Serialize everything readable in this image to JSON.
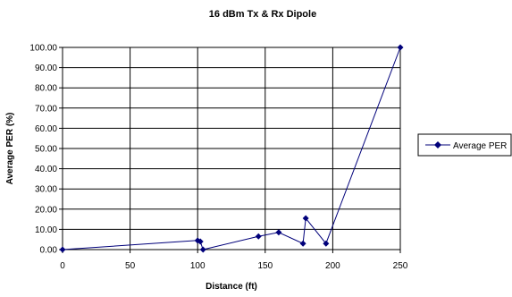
{
  "chart_data": {
    "type": "line",
    "title": "16 dBm Tx & Rx Dipole",
    "xlabel": "Distance (ft)",
    "ylabel": "Average PER (%)",
    "xlim": [
      0,
      250
    ],
    "ylim": [
      0,
      100
    ],
    "x_ticks": [
      0,
      50,
      100,
      150,
      200,
      250
    ],
    "x_tick_labels": [
      "0",
      "50",
      "100",
      "150",
      "200",
      "250"
    ],
    "y_ticks": [
      0,
      10,
      20,
      30,
      40,
      50,
      60,
      70,
      80,
      90,
      100
    ],
    "y_tick_labels": [
      "0.00",
      "10.00",
      "20.00",
      "30.00",
      "40.00",
      "50.00",
      "60.00",
      "70.00",
      "80.00",
      "90.00",
      "100.00"
    ],
    "grid": true,
    "legend_position": "right",
    "series": [
      {
        "name": "Average PER",
        "color": "#00007a",
        "marker": "diamond",
        "x": [
          0,
          100,
          102,
          104,
          145,
          160,
          178,
          180,
          195,
          250
        ],
        "y": [
          0.0,
          4.5,
          4.0,
          0.0,
          6.5,
          8.5,
          3.0,
          15.5,
          3.0,
          100.0
        ]
      }
    ]
  }
}
